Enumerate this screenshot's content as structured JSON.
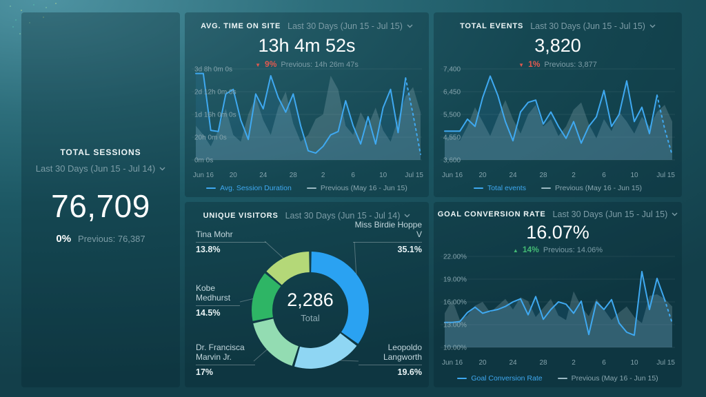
{
  "colors": {
    "accent_line": "#3fa9f1",
    "prev_series": "#9cbac4",
    "negative": "#e2594f",
    "positive": "#43b974",
    "background": "#1d5662"
  },
  "panels": {
    "total_sessions": {
      "title": "TOTAL SESSIONS",
      "range": "Last 30 Days (Jun 15 - Jul 14)",
      "value": "76,709",
      "delta_pct": "0%",
      "previous": "Previous: 76,387"
    },
    "avg_time_on_site": {
      "title": "AVG. TIME ON SITE",
      "range": "Last 30 Days (Jun 15 - Jul 15)",
      "value": "13h 4m 52s",
      "delta_arrow": "▼",
      "delta_pct": "9%",
      "previous": "Previous: 14h 26m 47s",
      "legend_main": "Avg. Session Duration",
      "legend_prev": "Previous (May 16 - Jun 15)"
    },
    "total_events": {
      "title": "TOTAL EVENTS",
      "range": "Last 30 Days (Jun 15 - Jul 15)",
      "value": "3,820",
      "delta_arrow": "▼",
      "delta_pct": "1%",
      "previous": "Previous: 3,877",
      "legend_main": "Total events",
      "legend_prev": "Previous (May 16 - Jun 15)"
    },
    "unique_visitors": {
      "title": "UNIQUE VISITORS",
      "range": "Last 30 Days (Jun 15 - Jul 14)",
      "center_value": "2,286",
      "center_label": "Total"
    },
    "goal_conversion": {
      "title": "GOAL CONVERSION RATE",
      "range": "Last 30 Days (Jun 15 - Jul 15)",
      "value": "16.07%",
      "delta_arrow": "▲",
      "delta_pct": "14%",
      "previous": "Previous: 14.06%",
      "legend_main": "Goal Conversion Rate",
      "legend_prev": "Previous (May 16 - Jun 15)"
    }
  },
  "chart_data": [
    {
      "type": "line",
      "title": "Avg. Time on Site",
      "unit": "hours",
      "ylim": [
        0,
        80
      ],
      "grid": true,
      "legend_position": "bottom",
      "dash_from": 28,
      "y_ticks": [
        {
          "v": 80,
          "label": "3d 8h 0m 0s"
        },
        {
          "v": 60,
          "label": "2d 12h 0m 0s"
        },
        {
          "v": 40,
          "label": "1d 16h 0m 0s"
        },
        {
          "v": 20,
          "label": "20h 0m 0s"
        },
        {
          "v": 0,
          "label": "0m 0s"
        }
      ],
      "x_ticks": [
        {
          "i": 1,
          "label": "Jun 16"
        },
        {
          "i": 5,
          "label": "20"
        },
        {
          "i": 9,
          "label": "24"
        },
        {
          "i": 13,
          "label": "28"
        },
        {
          "i": 17,
          "label": "2"
        },
        {
          "i": 21,
          "label": "6"
        },
        {
          "i": 25,
          "label": "10"
        },
        {
          "i": 30,
          "label": "Jul 15"
        }
      ],
      "series": [
        {
          "name": "Avg. Session Duration",
          "values": [
            76,
            76,
            26,
            25,
            58,
            62,
            35,
            18,
            58,
            45,
            74,
            55,
            42,
            58,
            30,
            8,
            6,
            12,
            22,
            25,
            52,
            30,
            14,
            38,
            14,
            46,
            62,
            24,
            72,
            40,
            5
          ]
        },
        {
          "name": "Previous (May 16 - Jun 15)",
          "values": [
            30,
            22,
            12,
            26,
            45,
            22,
            16,
            40,
            55,
            35,
            22,
            46,
            60,
            32,
            16,
            22,
            36,
            40,
            74,
            62,
            30,
            22,
            42,
            30,
            46,
            26,
            16,
            36,
            56,
            64,
            42
          ]
        }
      ]
    },
    {
      "type": "line",
      "title": "Total Events",
      "ylim": [
        3600,
        7400
      ],
      "grid": true,
      "legend_position": "bottom",
      "dash_from": 28,
      "y_ticks": [
        {
          "v": 7400,
          "label": "7,400"
        },
        {
          "v": 6450,
          "label": "6,450"
        },
        {
          "v": 5500,
          "label": "5,500"
        },
        {
          "v": 4550,
          "label": "4,550"
        },
        {
          "v": 3600,
          "label": "3,600"
        }
      ],
      "x_ticks": [
        {
          "i": 1,
          "label": "Jun 16"
        },
        {
          "i": 5,
          "label": "20"
        },
        {
          "i": 9,
          "label": "24"
        },
        {
          "i": 13,
          "label": "28"
        },
        {
          "i": 17,
          "label": "2"
        },
        {
          "i": 21,
          "label": "6"
        },
        {
          "i": 25,
          "label": "10"
        },
        {
          "i": 30,
          "label": "Jul 15"
        }
      ],
      "series": [
        {
          "name": "Total events",
          "values": [
            4800,
            4800,
            4800,
            5300,
            5000,
            6200,
            7100,
            6300,
            5200,
            4400,
            5600,
            6000,
            6100,
            5100,
            5600,
            5000,
            4500,
            5200,
            4300,
            5000,
            5400,
            6500,
            5000,
            5500,
            6900,
            5200,
            5800,
            4700,
            6300,
            4900,
            3800
          ]
        },
        {
          "name": "Previous (May 16 - Jun 15)",
          "values": [
            4500,
            4600,
            4400,
            5000,
            5800,
            5200,
            4600,
            5400,
            6100,
            5300,
            4700,
            5500,
            5900,
            5000,
            5300,
            4600,
            5000,
            5700,
            6000,
            5100,
            4500,
            5300,
            4800,
            5600,
            5200,
            4700,
            5400,
            5000,
            5600,
            5900,
            5200
          ]
        }
      ]
    },
    {
      "type": "line",
      "title": "Goal Conversion Rate",
      "unit": "%",
      "ylim": [
        10,
        22
      ],
      "grid": true,
      "legend_position": "bottom",
      "dash_from": 29,
      "y_ticks": [
        {
          "v": 22,
          "label": "22.00%"
        },
        {
          "v": 19,
          "label": "19.00%"
        },
        {
          "v": 16,
          "label": "16.00%"
        },
        {
          "v": 13,
          "label": "13.00%"
        },
        {
          "v": 10,
          "label": "10.00%"
        }
      ],
      "x_ticks": [
        {
          "i": 1,
          "label": "Jun 16"
        },
        {
          "i": 5,
          "label": "20"
        },
        {
          "i": 9,
          "label": "24"
        },
        {
          "i": 13,
          "label": "28"
        },
        {
          "i": 17,
          "label": "2"
        },
        {
          "i": 21,
          "label": "6"
        },
        {
          "i": 25,
          "label": "10"
        },
        {
          "i": 30,
          "label": "Jul 15"
        }
      ],
      "series": [
        {
          "name": "Goal Conversion Rate",
          "values": [
            13.3,
            13.3,
            13.4,
            14.6,
            15.3,
            14.5,
            14.8,
            15.0,
            15.4,
            16.0,
            16.4,
            14.3,
            16.7,
            13.7,
            15.0,
            16.0,
            15.7,
            14.5,
            16.1,
            11.7,
            16.0,
            15.0,
            16.3,
            13.2,
            12.0,
            11.6,
            20.0,
            15.0,
            19.1,
            16.3,
            13.2
          ]
        },
        {
          "name": "Previous (May 16 - Jun 15)",
          "values": [
            14.5,
            16.3,
            13.6,
            14.2,
            15.5,
            16.0,
            14.6,
            15.5,
            16.4,
            15.0,
            16.6,
            16.1,
            14.0,
            15.2,
            16.4,
            14.2,
            13.6,
            17.4,
            15.4,
            14.1,
            16.4,
            15.0,
            13.6,
            14.6,
            15.4,
            14.0,
            13.2,
            16.8,
            17.0,
            16.4,
            15.4
          ]
        }
      ]
    },
    {
      "type": "pie",
      "title": "Unique Visitors",
      "total": "2,286",
      "total_label": "Total",
      "slices": [
        {
          "name": "Miss Birdie Hoppe V",
          "pct": "35.1%",
          "value": 35.1,
          "color": "#2aa2f2"
        },
        {
          "name": "Leopoldo Langworth",
          "pct": "19.6%",
          "value": 19.6,
          "color": "#8fd6f3"
        },
        {
          "name": "Dr. Francisca Marvin Jr.",
          "pct": "17%",
          "value": 17.0,
          "color": "#93dcb2"
        },
        {
          "name": "Kobe Medhurst",
          "pct": "14.5%",
          "value": 14.5,
          "color": "#2eb565"
        },
        {
          "name": "Tina Mohr",
          "pct": "13.8%",
          "value": 13.8,
          "color": "#b4d878"
        }
      ]
    }
  ]
}
